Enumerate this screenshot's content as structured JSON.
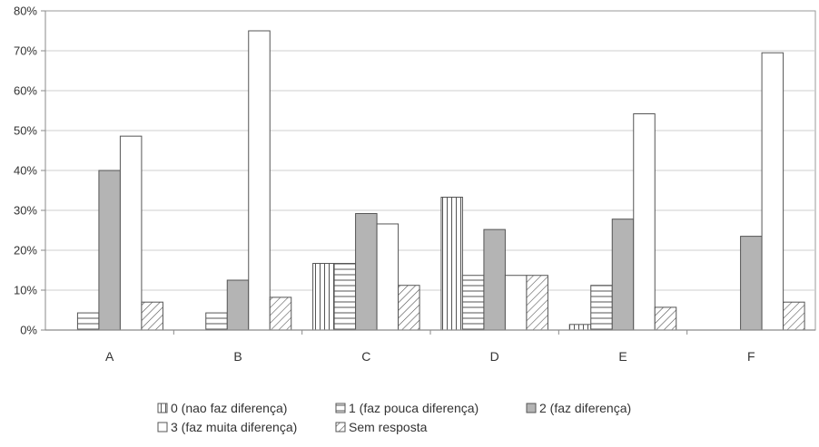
{
  "chart_data": {
    "type": "bar",
    "title": "",
    "xlabel": "",
    "ylabel": "",
    "ylim": [
      0,
      80
    ],
    "grid": true,
    "legend_position": "bottom",
    "categories": [
      "A",
      "B",
      "C",
      "D",
      "E",
      "F"
    ],
    "y_ticks": [
      "0%",
      "10%",
      "20%",
      "30%",
      "40%",
      "50%",
      "60%",
      "70%",
      "80%"
    ],
    "series": [
      {
        "name": "0 (nao faz diferença)",
        "pattern": "vertical-lines",
        "values": [
          0,
          0,
          16.7,
          33.3,
          1.4,
          0
        ]
      },
      {
        "name": "1 (faz pouca diferença)",
        "pattern": "horizontal-lines",
        "values": [
          4.3,
          4.3,
          16.7,
          13.7,
          11.2,
          0
        ]
      },
      {
        "name": "2 (faz diferença)",
        "pattern": "solid-gray",
        "values": [
          40.0,
          12.5,
          29.2,
          25.2,
          27.8,
          23.5
        ]
      },
      {
        "name": "3 (faz muita diferença)",
        "pattern": "white",
        "values": [
          48.6,
          75.0,
          26.6,
          13.7,
          54.2,
          69.5
        ]
      },
      {
        "name": "Sem resposta",
        "pattern": "diagonal-lines",
        "values": [
          7.0,
          8.2,
          11.2,
          13.7,
          5.7,
          7.0
        ]
      }
    ],
    "colors": {
      "bar_stroke": "#555555",
      "solid_fill": "#b4b4b4",
      "grid": "#cfcfcf",
      "axis": "#8a8a8a",
      "text": "#333333",
      "plot_border": "#999999"
    }
  }
}
